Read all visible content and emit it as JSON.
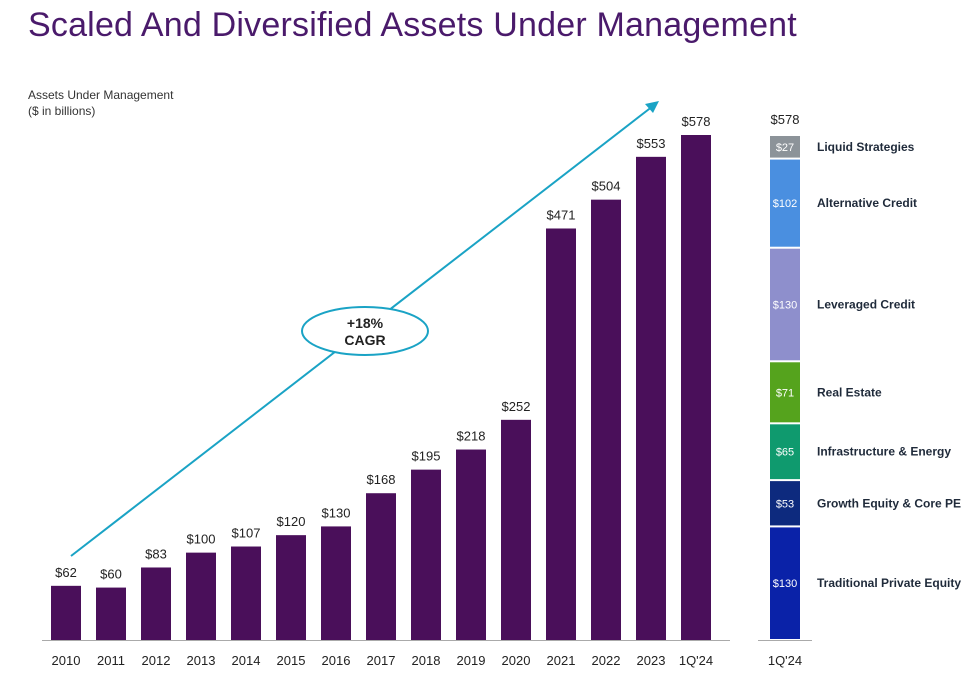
{
  "title": "Scaled And Diversified Assets Under Management",
  "chart_label": {
    "line1": "Assets Under Management",
    "line2": "($ in billions)"
  },
  "colors": {
    "title": "#4a1a6b",
    "bar": "#4a0f5a",
    "arrow": "#1aa3c5",
    "axis": "#aaaaaa"
  },
  "chart_data": [
    {
      "type": "bar",
      "categories": [
        "2010",
        "2011",
        "2012",
        "2013",
        "2014",
        "2015",
        "2016",
        "2017",
        "2018",
        "2019",
        "2020",
        "2021",
        "2022",
        "2023",
        "1Q'24"
      ],
      "values": [
        62,
        60,
        83,
        100,
        107,
        120,
        130,
        168,
        195,
        218,
        252,
        471,
        504,
        553,
        578
      ],
      "value_labels": [
        "$62",
        "$60",
        "$83",
        "$100",
        "$107",
        "$120",
        "$130",
        "$168",
        "$195",
        "$218",
        "$252",
        "$471",
        "$504",
        "$553",
        "$578"
      ],
      "annotation": {
        "line1": "+18%",
        "line2": "CAGR"
      }
    },
    {
      "type": "bar",
      "stacked": true,
      "category": "1Q'24",
      "total_label": "$578",
      "series": [
        {
          "name": "Traditional Private Equity",
          "value": 130,
          "value_label": "$130",
          "color": "#0a22a8"
        },
        {
          "name": "Growth Equity & Core PE",
          "value": 53,
          "value_label": "$53",
          "color": "#0d2a7e"
        },
        {
          "name": "Infrastructure & Energy",
          "value": 65,
          "value_label": "$65",
          "color": "#0f9a6e"
        },
        {
          "name": "Real Estate",
          "value": 71,
          "value_label": "$71",
          "color": "#55a31d"
        },
        {
          "name": "Leveraged Credit",
          "value": 130,
          "value_label": "$130",
          "color": "#8e8fcc"
        },
        {
          "name": "Alternative Credit",
          "value": 102,
          "value_label": "$102",
          "color": "#4a8fe0"
        },
        {
          "name": "Liquid Strategies",
          "value": 27,
          "value_label": "$27",
          "color": "#8c9399"
        }
      ]
    }
  ]
}
